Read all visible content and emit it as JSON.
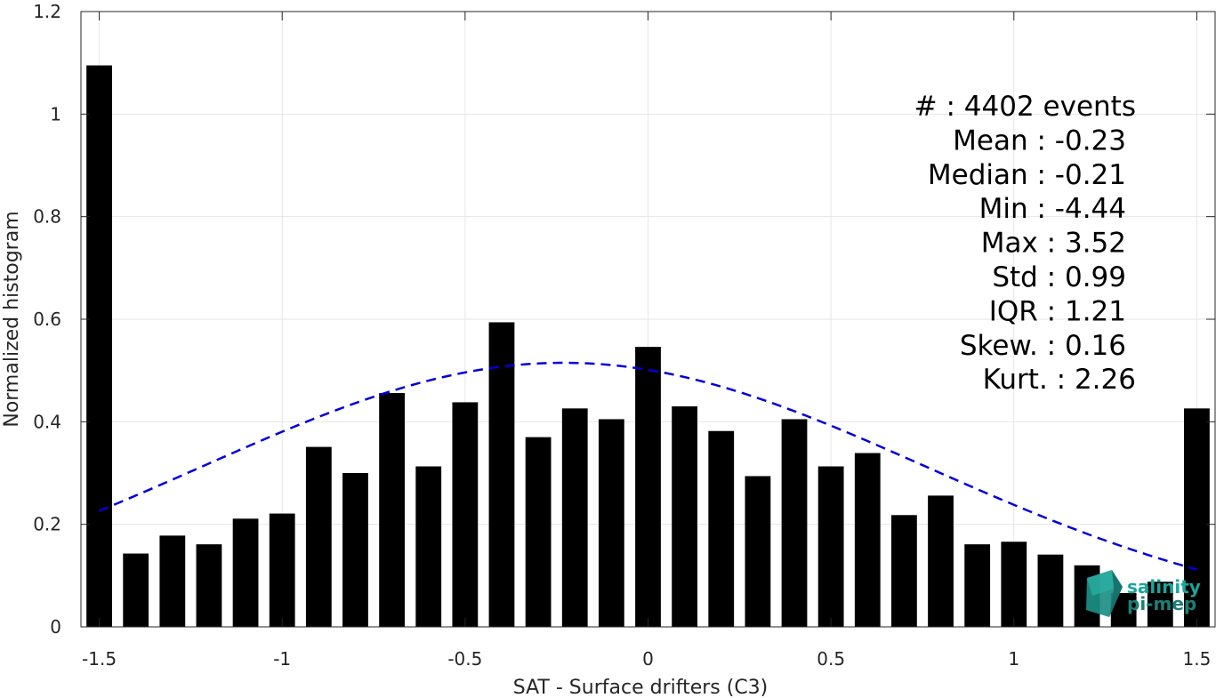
{
  "chart_data": {
    "type": "bar",
    "xlabel": "SAT - Surface drifters (C3)",
    "ylabel": "Normalized histogram",
    "xlim": [
      -1.55,
      1.55
    ],
    "ylim": [
      0,
      1.2
    ],
    "xticks": [
      -1.5,
      -1,
      -0.5,
      0,
      0.5,
      1,
      1.5
    ],
    "xtick_labels": [
      "-1.5",
      "-1",
      "-0.5",
      "0",
      "0.5",
      "1",
      "1.5"
    ],
    "yticks": [
      0,
      0.2,
      0.4,
      0.6,
      0.8,
      1,
      1.2
    ],
    "ytick_labels": [
      "0",
      "0.2",
      "0.4",
      "0.6",
      "0.8",
      "1",
      "1.2"
    ],
    "grid": true,
    "bar_color": "#000000",
    "bar_width": 0.07,
    "x": [
      -1.5,
      -1.4,
      -1.3,
      -1.2,
      -1.1,
      -1.0,
      -0.9,
      -0.8,
      -0.7,
      -0.6,
      -0.5,
      -0.4,
      -0.3,
      -0.2,
      -0.1,
      0.0,
      0.1,
      0.2,
      0.3,
      0.4,
      0.5,
      0.6,
      0.7,
      0.8,
      0.9,
      1.0,
      1.1,
      1.2,
      1.3,
      1.4,
      1.5
    ],
    "values": [
      1.095,
      0.143,
      0.178,
      0.161,
      0.211,
      0.221,
      0.351,
      0.3,
      0.456,
      0.313,
      0.438,
      0.594,
      0.37,
      0.426,
      0.405,
      0.546,
      0.43,
      0.382,
      0.294,
      0.405,
      0.313,
      0.339,
      0.218,
      0.256,
      0.161,
      0.166,
      0.141,
      0.12,
      0.066,
      0.088,
      0.426
    ],
    "fit": {
      "type": "normal",
      "mean": -0.23,
      "std": 0.99,
      "peak": 0.515,
      "x_range": [
        -1.5,
        1.5
      ],
      "color": "#0000dd",
      "style": "dashed"
    },
    "stats_lines": [
      "#  : 4402 events",
      "Mean : -0.23",
      "Median : -0.21",
      "Min : -4.44",
      "Max : 3.52",
      "Std : 0.99",
      "IQR : 1.21",
      "Skew. : 0.16",
      "Kurt. : 2.26"
    ]
  },
  "logo": {
    "line1": "salinity",
    "line2": "pi-mep",
    "color": "#1aa79b"
  }
}
